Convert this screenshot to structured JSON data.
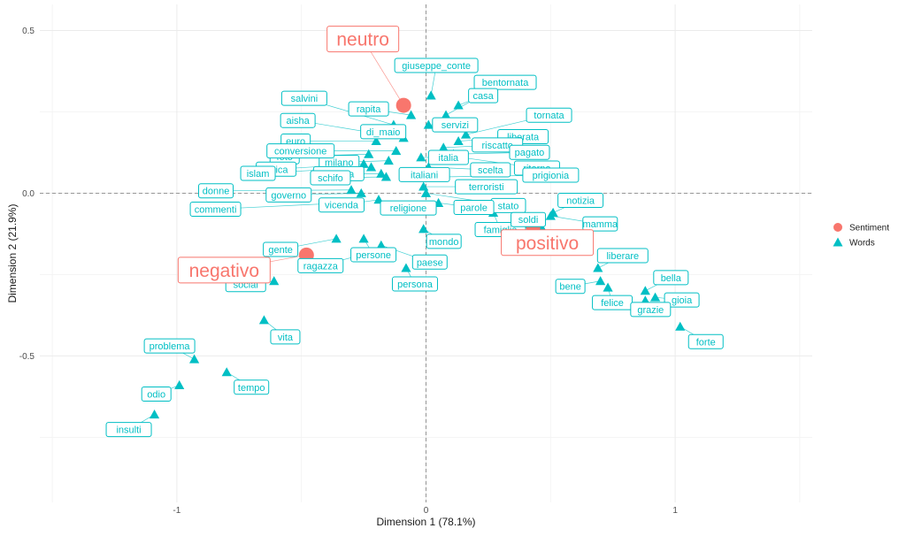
{
  "chart_data": {
    "type": "scatter",
    "xlabel": "Dimension 1 (78.1%)",
    "ylabel": "Dimension 2 (21.9%)",
    "xlim": [
      -1.55,
      1.55
    ],
    "ylim": [
      -0.95,
      0.58
    ],
    "x_ticks": [
      {
        "value": -1,
        "label": "-1"
      },
      {
        "value": 0,
        "label": "0"
      },
      {
        "value": 1,
        "label": "1"
      }
    ],
    "y_ticks": [
      {
        "value": 0.5,
        "label": "0.5"
      },
      {
        "value": 0,
        "label": "0.0"
      },
      {
        "value": -0.5,
        "label": "-0.5"
      }
    ],
    "grid": true,
    "reference_lines": {
      "x": 0,
      "y": 0,
      "style": "dashed"
    },
    "legend": {
      "placement": "right",
      "entries": [
        {
          "label": "Sentiment",
          "shape": "circle",
          "color": "#F8766D"
        },
        {
          "label": "Words",
          "shape": "triangle",
          "color": "#00BFC4"
        }
      ]
    },
    "series": [
      {
        "name": "Sentiment",
        "color": "#F8766D",
        "points": [
          {
            "label": "neutro",
            "x": -0.09,
            "y": 0.27
          },
          {
            "label": "negativo",
            "x": -0.48,
            "y": -0.19
          },
          {
            "label": "positivo",
            "x": 0.43,
            "y": -0.1
          }
        ]
      },
      {
        "name": "Words",
        "color": "#00BFC4",
        "points": [
          {
            "label": "giuseppe_conte",
            "x": 0.02,
            "y": 0.3
          },
          {
            "label": "bentornata",
            "x": 0.08,
            "y": 0.24
          },
          {
            "label": "salvini",
            "x": -0.13,
            "y": 0.21
          },
          {
            "label": "rapita",
            "x": -0.06,
            "y": 0.24
          },
          {
            "label": "casa",
            "x": 0.13,
            "y": 0.27
          },
          {
            "label": "tornata",
            "x": 0.16,
            "y": 0.18
          },
          {
            "label": "aisha",
            "x": -0.17,
            "y": 0.18
          },
          {
            "label": "di_maio",
            "x": -0.09,
            "y": 0.17
          },
          {
            "label": "servizi",
            "x": 0.01,
            "y": 0.21
          },
          {
            "label": "liberata",
            "x": 0.13,
            "y": 0.16
          },
          {
            "label": "euro",
            "x": -0.2,
            "y": 0.16
          },
          {
            "label": "foto",
            "x": -0.23,
            "y": 0.12
          },
          {
            "label": "riscatto",
            "x": 0.07,
            "y": 0.14
          },
          {
            "label": "pagato",
            "x": 0.11,
            "y": 0.12
          },
          {
            "label": "africa",
            "x": -0.25,
            "y": 0.09
          },
          {
            "label": "milano",
            "x": -0.15,
            "y": 0.1
          },
          {
            "label": "conversione",
            "x": -0.12,
            "y": 0.13
          },
          {
            "label": "ritorno",
            "x": 0.14,
            "y": 0.11
          },
          {
            "label": "italia",
            "x": -0.02,
            "y": 0.11
          },
          {
            "label": "islam",
            "x": -0.22,
            "y": 0.08
          },
          {
            "label": "italiana",
            "x": -0.18,
            "y": 0.06
          },
          {
            "label": "scelta",
            "x": 0.01,
            "y": 0.08
          },
          {
            "label": "prigionia",
            "x": 0.06,
            "y": 0.05
          },
          {
            "label": "donne",
            "x": -0.3,
            "y": 0.01
          },
          {
            "label": "schifo",
            "x": -0.16,
            "y": 0.05
          },
          {
            "label": "italiani",
            "x": -0.06,
            "y": 0.06
          },
          {
            "label": "terroristi",
            "x": -0.01,
            "y": 0.02
          },
          {
            "label": "stato",
            "x": 0.0,
            "y": 0.0
          },
          {
            "label": "notizia",
            "x": 0.51,
            "y": -0.06
          },
          {
            "label": "commenti",
            "x": -0.33,
            "y": -0.03
          },
          {
            "label": "governo",
            "x": -0.26,
            "y": 0.0
          },
          {
            "label": "vicenda",
            "x": -0.19,
            "y": -0.02
          },
          {
            "label": "religione",
            "x": -0.11,
            "y": -0.04
          },
          {
            "label": "parole",
            "x": 0.05,
            "y": -0.03
          },
          {
            "label": "mamma",
            "x": 0.5,
            "y": -0.07
          },
          {
            "label": "famiglia",
            "x": 0.27,
            "y": -0.06
          },
          {
            "label": "soldi",
            "x": 0.46,
            "y": -0.1
          },
          {
            "label": "gente",
            "x": -0.36,
            "y": -0.14
          },
          {
            "label": "persone",
            "x": -0.25,
            "y": -0.14
          },
          {
            "label": "mondo",
            "x": -0.01,
            "y": -0.11
          },
          {
            "label": "ragazza",
            "x": -0.26,
            "y": -0.19
          },
          {
            "label": "paese",
            "x": -0.18,
            "y": -0.16
          },
          {
            "label": "persona",
            "x": -0.08,
            "y": -0.23
          },
          {
            "label": "liberare",
            "x": 0.69,
            "y": -0.23
          },
          {
            "label": "bella",
            "x": 0.88,
            "y": -0.3
          },
          {
            "label": "bene",
            "x": 0.7,
            "y": -0.27
          },
          {
            "label": "felice",
            "x": 0.73,
            "y": -0.29
          },
          {
            "label": "gioia",
            "x": 0.92,
            "y": -0.32
          },
          {
            "label": "grazie",
            "x": 0.88,
            "y": -0.33
          },
          {
            "label": "forte",
            "x": 1.02,
            "y": -0.41
          },
          {
            "label": "social",
            "x": -0.61,
            "y": -0.27
          },
          {
            "label": "vita",
            "x": -0.65,
            "y": -0.39
          },
          {
            "label": "problema",
            "x": -0.93,
            "y": -0.51
          },
          {
            "label": "tempo",
            "x": -0.8,
            "y": -0.55
          },
          {
            "label": "odio",
            "x": -0.99,
            "y": -0.59
          },
          {
            "label": "insulti",
            "x": -1.09,
            "y": -0.68
          }
        ]
      }
    ]
  }
}
